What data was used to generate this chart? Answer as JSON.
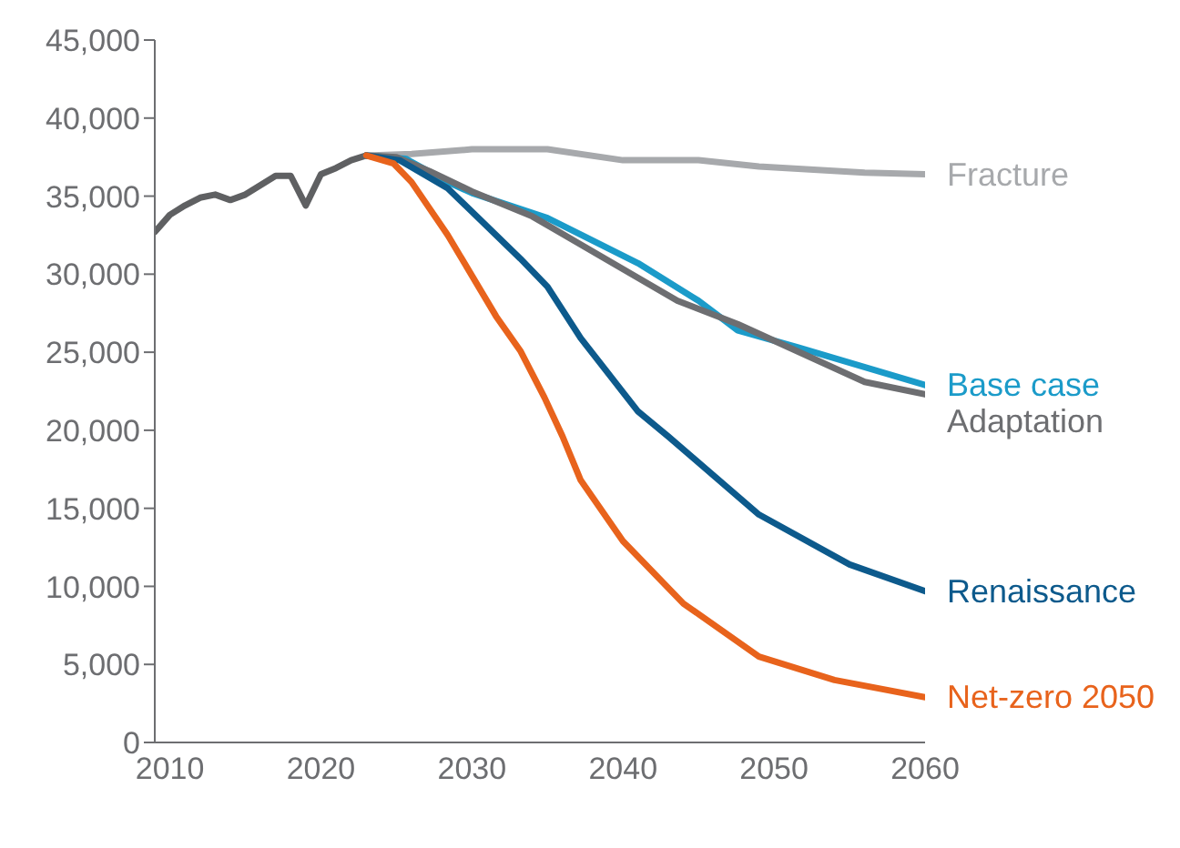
{
  "chart_data": {
    "type": "line",
    "xlim": [
      2009,
      2060
    ],
    "xticks": [
      2010,
      2020,
      2030,
      2040,
      2050,
      2060
    ],
    "ylim": [
      0,
      45000
    ],
    "yticks": [
      {
        "value": 0,
        "label": "0"
      },
      {
        "value": 5000,
        "label": "5,000"
      },
      {
        "value": 10000,
        "label": "10,000"
      },
      {
        "value": 15000,
        "label": "15,000"
      },
      {
        "value": 20000,
        "label": "20,000"
      },
      {
        "value": 25000,
        "label": "25,000"
      },
      {
        "value": 30000,
        "label": "30,000"
      },
      {
        "value": 35000,
        "label": "35,000"
      },
      {
        "value": 40000,
        "label": "40,000"
      },
      {
        "value": 45000,
        "label": "45,000"
      }
    ],
    "grid": false,
    "legend": false,
    "marker": "none",
    "line_style": "solid",
    "series": [
      {
        "color": "#5f6062",
        "x": [
          2009,
          2010,
          2011,
          2012,
          2013,
          2014,
          2015,
          2016,
          2017,
          2018,
          2019,
          2020,
          2021,
          2022,
          2023
        ],
        "values": [
          32700,
          33800,
          34400,
          34900,
          35100,
          34750,
          35100,
          35700,
          36300,
          36300,
          34400,
          36400,
          36800,
          37300,
          37600
        ]
      },
      {
        "name": "Fracture",
        "color": "#a7a9ac",
        "x": [
          2023,
          2026,
          2030,
          2035,
          2040,
          2045,
          2049,
          2056,
          2060
        ],
        "values": [
          37600,
          37700,
          38000,
          38000,
          37300,
          37300,
          36900,
          36500,
          36400
        ]
      },
      {
        "name": "Base case",
        "color": "#1b9bc9",
        "x": [
          2023,
          2025.6,
          2028.4,
          2030,
          2035,
          2041,
          2045,
          2047.6,
          2051.6,
          2060
        ],
        "values": [
          37600,
          37400,
          35900,
          35200,
          33600,
          30700,
          28300,
          26400,
          25300,
          22900
        ]
      },
      {
        "name": "Adaptation",
        "color": "#6d6e71",
        "x": [
          2023,
          2025,
          2027.2,
          2030,
          2034,
          2037.2,
          2043.6,
          2047.6,
          2056,
          2060
        ],
        "values": [
          37600,
          37500,
          36600,
          35300,
          33700,
          31900,
          28300,
          26800,
          23100,
          22300
        ]
      },
      {
        "name": "Renaissance",
        "color": "#0d5a8c",
        "x": [
          2023,
          2025.2,
          2028.4,
          2033.2,
          2035,
          2037.2,
          2041,
          2043,
          2049,
          2055,
          2060
        ],
        "values": [
          37600,
          37300,
          35500,
          31000,
          29200,
          25900,
          21200,
          19600,
          14600,
          11400,
          9700
        ]
      },
      {
        "name": "Net-zero 2050",
        "color": "#e8631c",
        "x": [
          2023,
          2024.8,
          2026,
          2028.4,
          2031.6,
          2033.2,
          2034.8,
          2036,
          2037.2,
          2040,
          2044,
          2049,
          2054,
          2060
        ],
        "values": [
          37600,
          37100,
          35900,
          32500,
          27300,
          25100,
          22100,
          19600,
          16800,
          12900,
          8900,
          5500,
          4000,
          2900
        ]
      }
    ]
  }
}
